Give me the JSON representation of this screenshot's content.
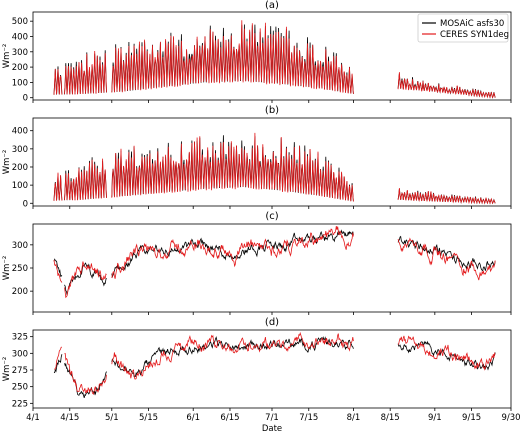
{
  "chart_data": {
    "type": "line",
    "xlabel": "Date",
    "x_ticks": [
      "4/1",
      "4/15",
      "5/1",
      "5/15",
      "6/1",
      "6/15",
      "7/1",
      "7/15",
      "8/1",
      "8/15",
      "9/1",
      "9/15",
      "9/30"
    ],
    "x_range": [
      "2020-04-01",
      "2020-09-30"
    ],
    "series_styles": [
      {
        "name": "MOSAiC asfs30",
        "color": "#000000"
      },
      {
        "name": "CERES SYN1deg",
        "color": "#e31a1c"
      }
    ],
    "legend": {
      "placement": "top-right",
      "panel": 0
    },
    "gaps": [
      [
        "2020-04-12",
        "2020-04-13"
      ],
      [
        "2020-04-29",
        "2020-04-30"
      ],
      [
        "2020-08-01",
        "2020-08-18"
      ]
    ],
    "data_segments": [
      [
        "2020-04-09",
        "2020-04-30"
      ],
      [
        "2020-05-01",
        "2020-08-01"
      ],
      [
        "2020-08-18",
        "2020-09-24"
      ]
    ],
    "panels": [
      {
        "title": "(a)",
        "ylabel": "Wm⁻²",
        "ylim": [
          -15,
          560
        ],
        "yticks": [
          0,
          100,
          200,
          300,
          400,
          500
        ],
        "kind": "diurnal",
        "envelope": [
          {
            "date": "2020-04-09",
            "low": 20,
            "high": 170
          },
          {
            "date": "2020-04-20",
            "low": 25,
            "high": 230
          },
          {
            "date": "2020-05-05",
            "low": 40,
            "high": 300
          },
          {
            "date": "2020-05-20",
            "low": 70,
            "high": 330
          },
          {
            "date": "2020-06-05",
            "low": 100,
            "high": 380
          },
          {
            "date": "2020-06-20",
            "low": 110,
            "high": 400
          },
          {
            "date": "2020-07-05",
            "low": 90,
            "high": 380
          },
          {
            "date": "2020-07-20",
            "low": 60,
            "high": 300
          },
          {
            "date": "2020-08-01",
            "low": 25,
            "high": 170
          },
          {
            "date": "2020-08-18",
            "low": 60,
            "high": 130
          },
          {
            "date": "2020-09-01",
            "low": 40,
            "high": 80
          },
          {
            "date": "2020-09-24",
            "low": 0,
            "high": 30
          }
        ]
      },
      {
        "title": "(b)",
        "ylabel": "Wm⁻²",
        "ylim": [
          -15,
          470
        ],
        "yticks": [
          0,
          100,
          200,
          300,
          400
        ],
        "kind": "diurnal",
        "envelope": [
          {
            "date": "2020-04-09",
            "low": 15,
            "high": 130
          },
          {
            "date": "2020-04-20",
            "low": 20,
            "high": 190
          },
          {
            "date": "2020-05-05",
            "low": 40,
            "high": 250
          },
          {
            "date": "2020-05-20",
            "low": 60,
            "high": 270
          },
          {
            "date": "2020-06-05",
            "low": 80,
            "high": 300
          },
          {
            "date": "2020-06-20",
            "low": 90,
            "high": 310
          },
          {
            "date": "2020-07-05",
            "low": 70,
            "high": 290
          },
          {
            "date": "2020-07-20",
            "low": 40,
            "high": 230
          },
          {
            "date": "2020-08-01",
            "low": 10,
            "high": 100
          },
          {
            "date": "2020-08-18",
            "low": 20,
            "high": 70
          },
          {
            "date": "2020-09-01",
            "low": 10,
            "high": 50
          },
          {
            "date": "2020-09-24",
            "low": 0,
            "high": 20
          }
        ]
      },
      {
        "title": "(c)",
        "ylabel": "Wm⁻²",
        "ylim": [
          155,
          345
        ],
        "yticks": [
          200,
          250,
          300
        ],
        "kind": "smooth",
        "mean": [
          {
            "date": "2020-04-09",
            "value": 270
          },
          {
            "date": "2020-04-14",
            "value": 190
          },
          {
            "date": "2020-04-20",
            "value": 250
          },
          {
            "date": "2020-04-28",
            "value": 215
          },
          {
            "date": "2020-05-05",
            "value": 255
          },
          {
            "date": "2020-05-15",
            "value": 285
          },
          {
            "date": "2020-05-25",
            "value": 290
          },
          {
            "date": "2020-06-05",
            "value": 300
          },
          {
            "date": "2020-06-15",
            "value": 280
          },
          {
            "date": "2020-06-25",
            "value": 300
          },
          {
            "date": "2020-07-05",
            "value": 295
          },
          {
            "date": "2020-07-15",
            "value": 310
          },
          {
            "date": "2020-08-01",
            "value": 325
          },
          {
            "date": "2020-08-18",
            "value": 310
          },
          {
            "date": "2020-09-01",
            "value": 290
          },
          {
            "date": "2020-09-15",
            "value": 250
          },
          {
            "date": "2020-09-24",
            "value": 260
          }
        ]
      },
      {
        "title": "(d)",
        "ylabel": "Wm⁻²",
        "ylim": [
          218,
          335
        ],
        "yticks": [
          225,
          250,
          275,
          300,
          325
        ],
        "kind": "smooth",
        "mean": [
          {
            "date": "2020-04-09",
            "value": 275
          },
          {
            "date": "2020-04-12",
            "value": 300
          },
          {
            "date": "2020-04-18",
            "value": 245
          },
          {
            "date": "2020-04-25",
            "value": 245
          },
          {
            "date": "2020-05-02",
            "value": 290
          },
          {
            "date": "2020-05-10",
            "value": 265
          },
          {
            "date": "2020-05-20",
            "value": 300
          },
          {
            "date": "2020-06-01",
            "value": 312
          },
          {
            "date": "2020-07-01",
            "value": 313
          },
          {
            "date": "2020-08-01",
            "value": 318
          },
          {
            "date": "2020-08-18",
            "value": 318
          },
          {
            "date": "2020-09-01",
            "value": 305
          },
          {
            "date": "2020-09-10",
            "value": 290
          },
          {
            "date": "2020-09-18",
            "value": 280
          },
          {
            "date": "2020-09-24",
            "value": 292
          }
        ]
      }
    ]
  }
}
